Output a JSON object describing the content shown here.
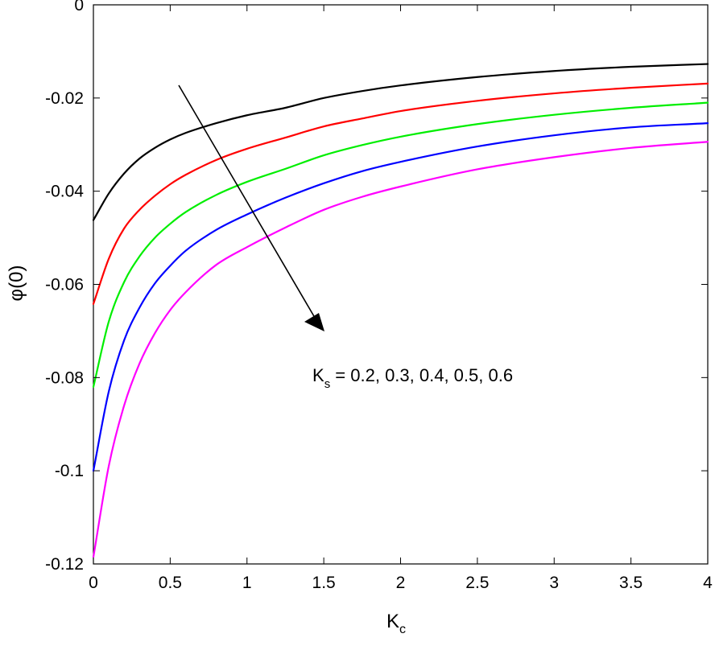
{
  "chart_data": {
    "type": "line",
    "xlabel_main": "K",
    "xlabel_sub": "c",
    "ylabel": "φ(0)",
    "xlim": [
      0,
      4
    ],
    "ylim": [
      -0.12,
      0
    ],
    "x_ticks": [
      "0",
      "0.5",
      "1",
      "1.5",
      "2",
      "2.5",
      "3",
      "3.5",
      "4"
    ],
    "y_ticks": [
      "0",
      "-0.02",
      "-0.04",
      "-0.06",
      "-0.08",
      "-0.1",
      "-0.12"
    ],
    "grid": false,
    "annotation": {
      "main": "K",
      "sub": "s",
      "text": " = 0.2, 0.3, 0.4, 0.5, 0.6"
    },
    "x": [
      0,
      0.1,
      0.2,
      0.3,
      0.4,
      0.5,
      0.6,
      0.8,
      1.0,
      1.25,
      1.5,
      1.75,
      2.0,
      2.5,
      3.0,
      3.5,
      4.0
    ],
    "series": [
      {
        "color": "#000000",
        "values": [
          -0.0462,
          -0.0405,
          -0.0362,
          -0.033,
          -0.0307,
          -0.0289,
          -0.0275,
          -0.0254,
          -0.0237,
          -0.0221,
          -0.02,
          -0.0185,
          -0.0173,
          -0.0155,
          -0.0142,
          -0.0133,
          -0.0127
        ]
      },
      {
        "color": "#ff0000",
        "values": [
          -0.0642,
          -0.0545,
          -0.048,
          -0.044,
          -0.041,
          -0.0385,
          -0.0365,
          -0.0333,
          -0.0309,
          -0.0285,
          -0.0261,
          -0.0244,
          -0.0228,
          -0.0206,
          -0.019,
          -0.0178,
          -0.0169
        ]
      },
      {
        "color": "#00ee00",
        "values": [
          -0.082,
          -0.068,
          -0.0595,
          -0.054,
          -0.05,
          -0.047,
          -0.0445,
          -0.0408,
          -0.038,
          -0.0352,
          -0.0323,
          -0.0301,
          -0.0283,
          -0.0256,
          -0.0236,
          -0.0221,
          -0.021
        ]
      },
      {
        "color": "#0000ff",
        "values": [
          -0.1,
          -0.083,
          -0.072,
          -0.065,
          -0.0598,
          -0.056,
          -0.0528,
          -0.0483,
          -0.045,
          -0.0414,
          -0.0383,
          -0.0357,
          -0.0337,
          -0.0304,
          -0.028,
          -0.0263,
          -0.0254
        ]
      },
      {
        "color": "#ff00ff",
        "values": [
          -0.1185,
          -0.099,
          -0.086,
          -0.077,
          -0.0705,
          -0.0655,
          -0.0617,
          -0.0558,
          -0.052,
          -0.0478,
          -0.044,
          -0.0412,
          -0.039,
          -0.0353,
          -0.0327,
          -0.0307,
          -0.0294
        ]
      }
    ]
  }
}
